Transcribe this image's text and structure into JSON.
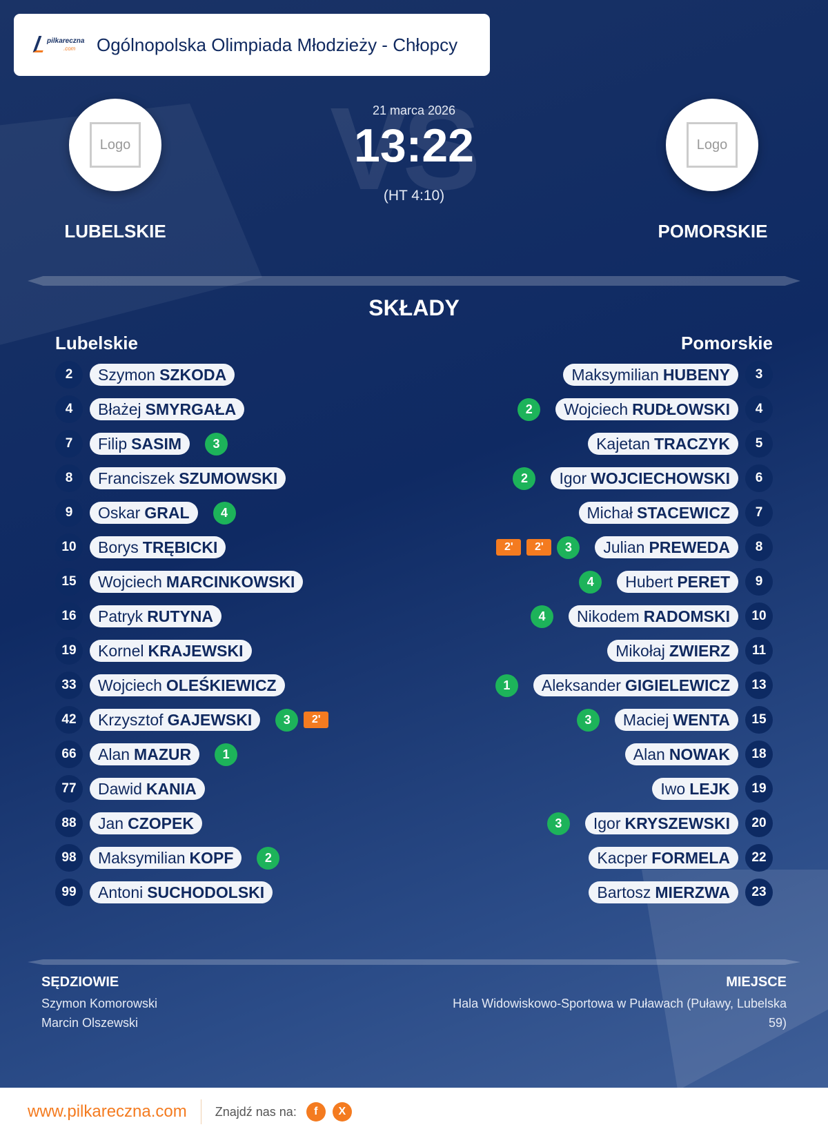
{
  "header": {
    "title": "Ogólnopolska Olimpiada Młodzieży - Chłopcy",
    "logo_text": "pilkareczna.com"
  },
  "match": {
    "date": "21 marca 2026",
    "score": "13:22",
    "halftime": "(HT 4:10)",
    "vs": "VS",
    "home": {
      "name": "LUBELSKIE",
      "logo": "Logo"
    },
    "away": {
      "name": "POMORSKIE",
      "logo": "Logo"
    }
  },
  "lineups": {
    "title": "SKŁADY",
    "home": {
      "title": "Lubelskie",
      "players": [
        {
          "num": "2",
          "first": "Szymon",
          "last": "SZKODA",
          "goals": null,
          "pens": []
        },
        {
          "num": "4",
          "first": "Błażej",
          "last": "SMYRGAŁA",
          "goals": null,
          "pens": []
        },
        {
          "num": "7",
          "first": "Filip",
          "last": "SASIM",
          "goals": "3",
          "pens": []
        },
        {
          "num": "8",
          "first": "Franciszek",
          "last": "SZUMOWSKI",
          "goals": null,
          "pens": []
        },
        {
          "num": "9",
          "first": "Oskar",
          "last": "GRAL",
          "goals": "4",
          "pens": []
        },
        {
          "num": "10",
          "first": "Borys",
          "last": "TRĘBICKI",
          "goals": null,
          "pens": []
        },
        {
          "num": "15",
          "first": "Wojciech",
          "last": "MARCINKOWSKI",
          "goals": null,
          "pens": []
        },
        {
          "num": "16",
          "first": "Patryk",
          "last": "RUTYNA",
          "goals": null,
          "pens": []
        },
        {
          "num": "19",
          "first": "Kornel",
          "last": "KRAJEWSKI",
          "goals": null,
          "pens": []
        },
        {
          "num": "33",
          "first": "Wojciech",
          "last": "OLEŚKIEWICZ",
          "goals": null,
          "pens": []
        },
        {
          "num": "42",
          "first": "Krzysztof",
          "last": "GAJEWSKI",
          "goals": "3",
          "pens": [
            "2'"
          ]
        },
        {
          "num": "66",
          "first": "Alan",
          "last": "MAZUR",
          "goals": "1",
          "pens": []
        },
        {
          "num": "77",
          "first": "Dawid",
          "last": "KANIA",
          "goals": null,
          "pens": []
        },
        {
          "num": "88",
          "first": "Jan",
          "last": "CZOPEK",
          "goals": null,
          "pens": []
        },
        {
          "num": "98",
          "first": "Maksymilian",
          "last": "KOPF",
          "goals": "2",
          "pens": []
        },
        {
          "num": "99",
          "first": "Antoni",
          "last": "SUCHODOLSKI",
          "goals": null,
          "pens": []
        }
      ]
    },
    "away": {
      "title": "Pomorskie",
      "players": [
        {
          "num": "3",
          "first": "Maksymilian",
          "last": "HUBENY",
          "goals": null,
          "pens": []
        },
        {
          "num": "4",
          "first": "Wojciech",
          "last": "RUDŁOWSKI",
          "goals": "2",
          "pens": []
        },
        {
          "num": "5",
          "first": "Kajetan",
          "last": "TRACZYK",
          "goals": null,
          "pens": []
        },
        {
          "num": "6",
          "first": "Igor",
          "last": "WOJCIECHOWSKI",
          "goals": "2",
          "pens": []
        },
        {
          "num": "7",
          "first": "Michał",
          "last": "STACEWICZ",
          "goals": null,
          "pens": []
        },
        {
          "num": "8",
          "first": "Julian",
          "last": "PREWEDA",
          "goals": "3",
          "pens": [
            "2'",
            "2'"
          ]
        },
        {
          "num": "9",
          "first": "Hubert",
          "last": "PERET",
          "goals": "4",
          "pens": []
        },
        {
          "num": "10",
          "first": "Nikodem",
          "last": "RADOMSKI",
          "goals": "4",
          "pens": []
        },
        {
          "num": "11",
          "first": "Mikołaj",
          "last": "ZWIERZ",
          "goals": null,
          "pens": []
        },
        {
          "num": "13",
          "first": "Aleksander",
          "last": "GIGIELEWICZ",
          "goals": "1",
          "pens": []
        },
        {
          "num": "15",
          "first": "Maciej",
          "last": "WENTA",
          "goals": "3",
          "pens": []
        },
        {
          "num": "18",
          "first": "Alan",
          "last": "NOWAK",
          "goals": null,
          "pens": []
        },
        {
          "num": "19",
          "first": "Iwo",
          "last": "LEJK",
          "goals": null,
          "pens": []
        },
        {
          "num": "20",
          "first": "Igor",
          "last": "KRYSZEWSKI",
          "goals": "3",
          "pens": []
        },
        {
          "num": "22",
          "first": "Kacper",
          "last": "FORMELA",
          "goals": null,
          "pens": []
        },
        {
          "num": "23",
          "first": "Bartosz",
          "last": "MIERZWA",
          "goals": null,
          "pens": []
        }
      ]
    }
  },
  "officials": {
    "title": "SĘDZIOWIE",
    "names": [
      "Szymon Komorowski",
      "Marcin Olszewski"
    ]
  },
  "venue": {
    "title": "MIEJSCE",
    "text": "Hala Widowiskowo-Sportowa w Puławach (Puławy, Lubelska 59)"
  },
  "footer": {
    "site": "www.pilkareczna.com",
    "find": "Znajdź nas na:",
    "social": [
      {
        "icon": "facebook-icon",
        "label": "f"
      },
      {
        "icon": "x-icon",
        "label": "X"
      }
    ]
  },
  "colors": {
    "navy": "#0f2a63",
    "goal": "#1db35a",
    "penalty": "#f47b20",
    "accent": "#f47b20"
  }
}
